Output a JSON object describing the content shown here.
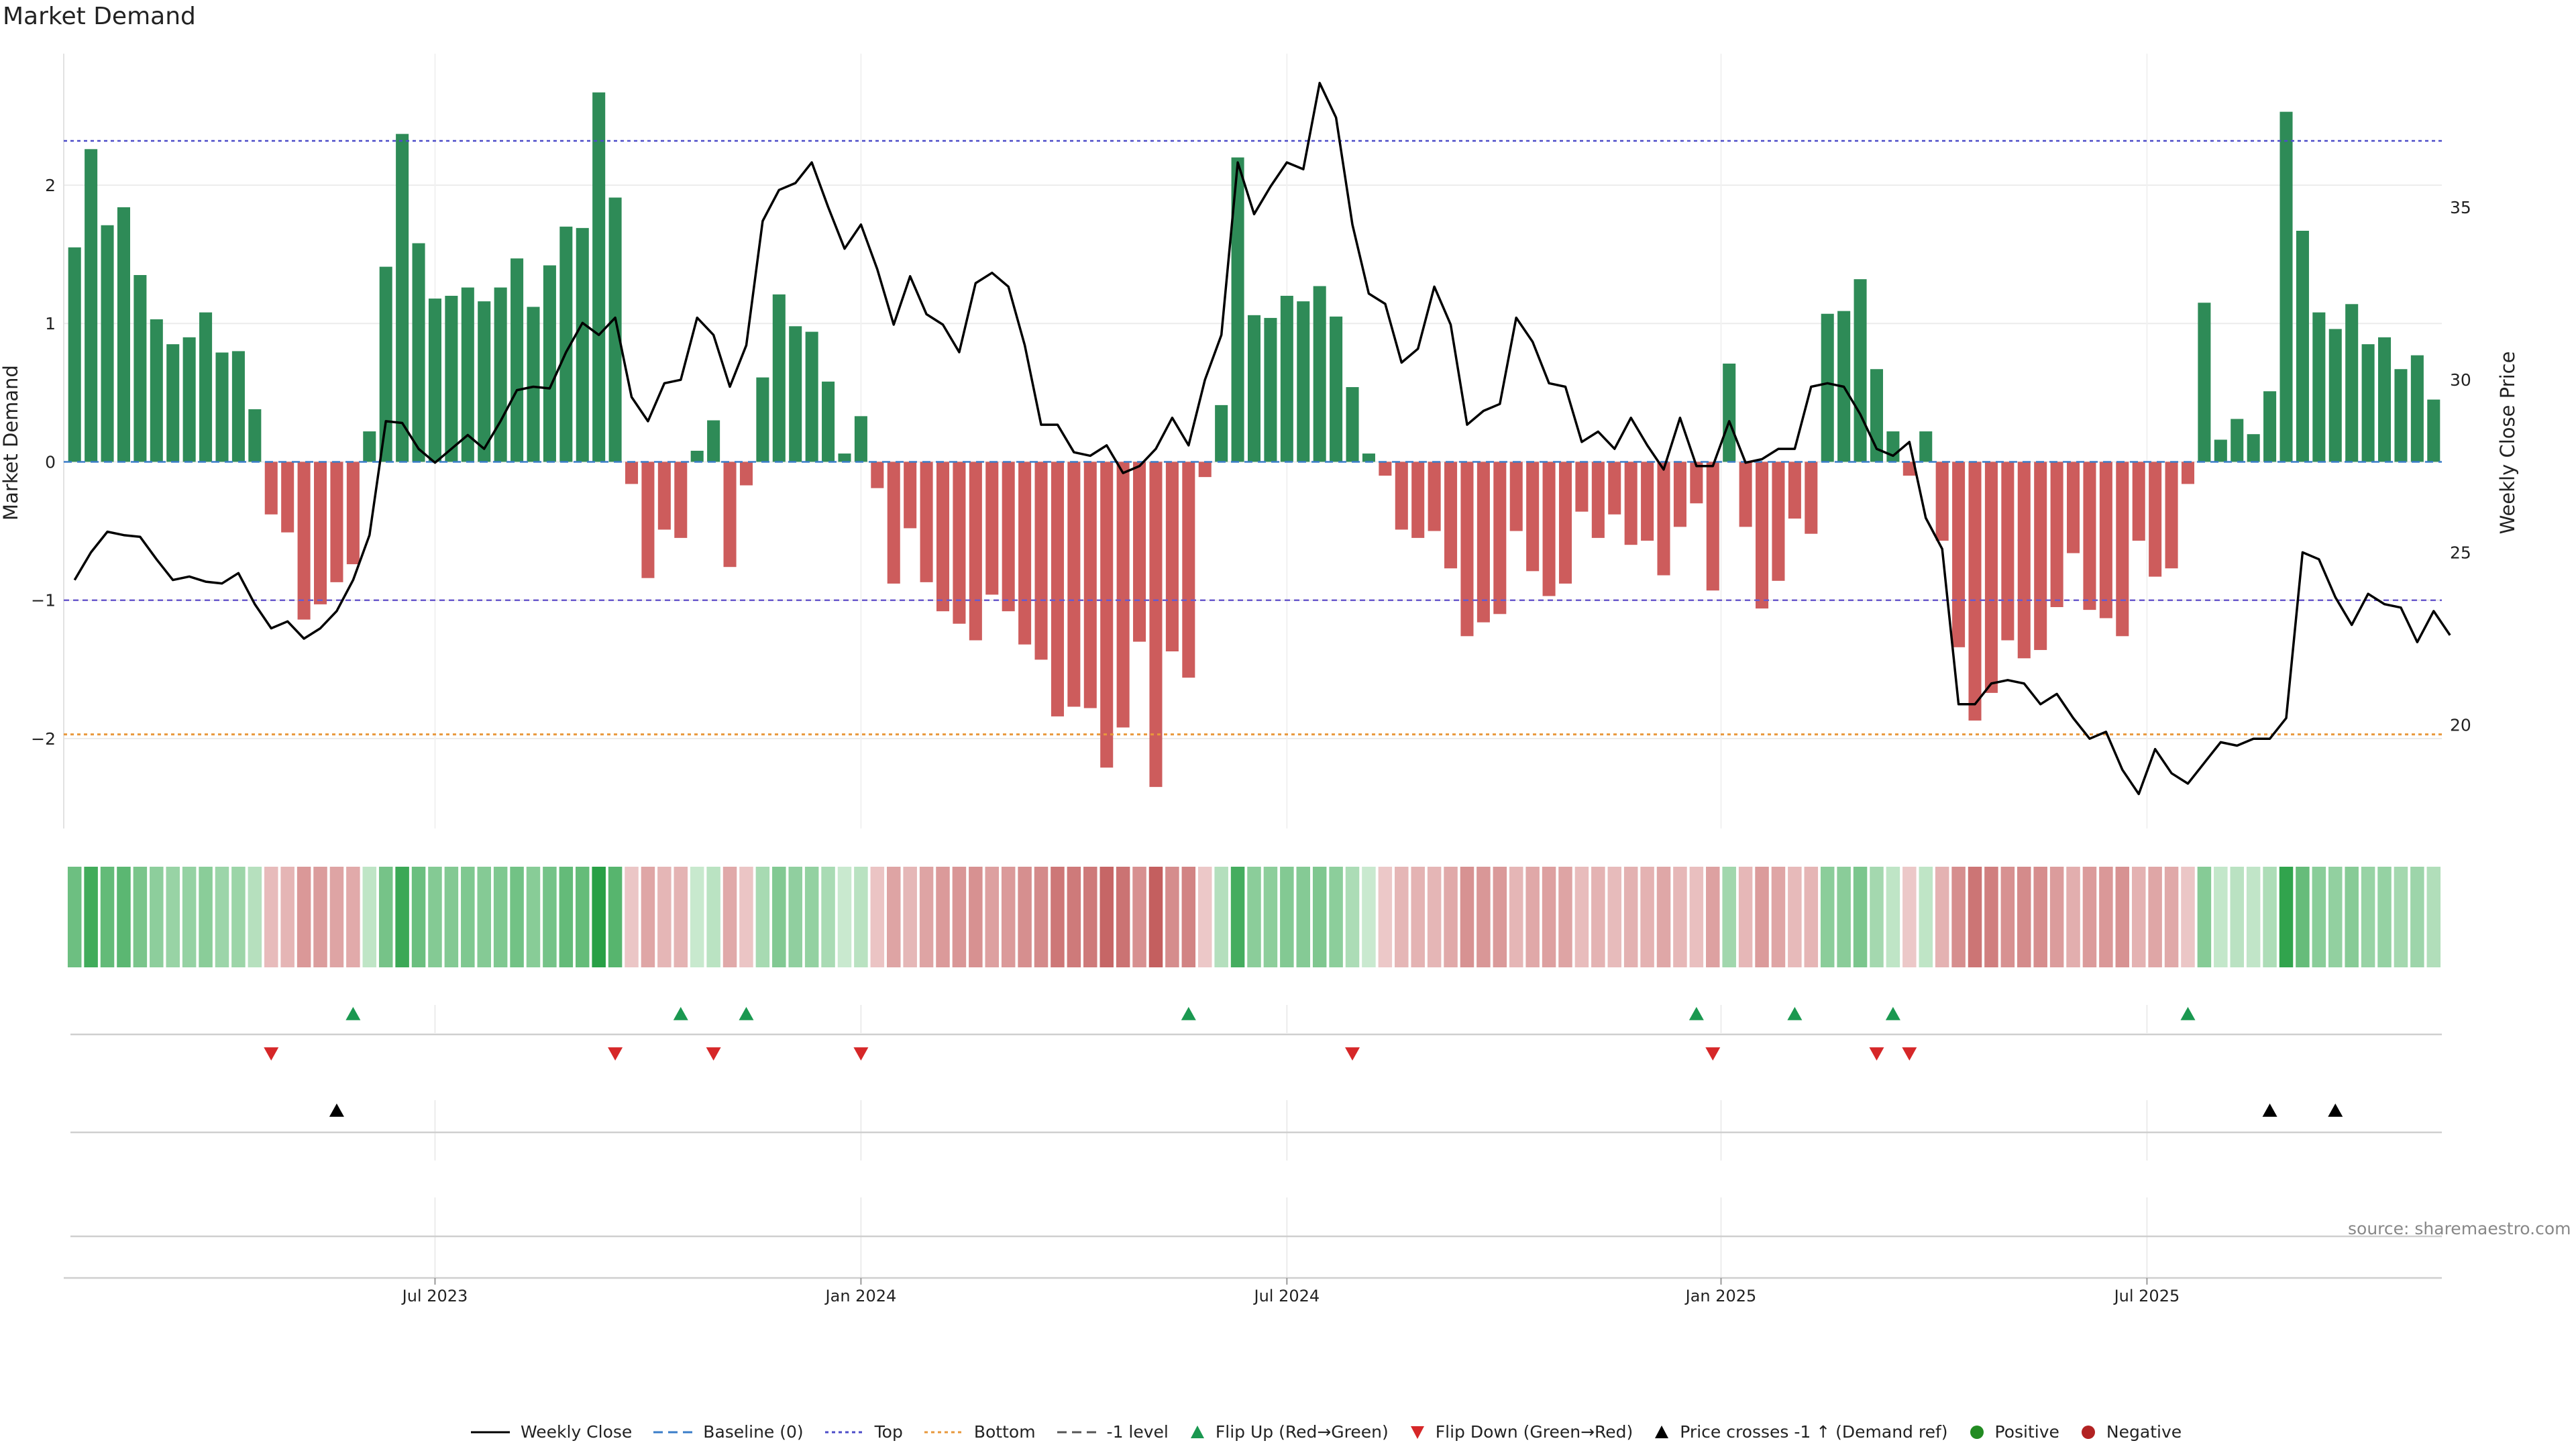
{
  "title": "Market Demand",
  "source": "source: sharemaestro.com",
  "colors": {
    "pos": "#2e8b57",
    "neg": "#cd5c5c",
    "price": "#000000",
    "top": "#4c4cc8",
    "bottom": "#e8983c",
    "minus1": "#6a5acd",
    "flip_up": "#1a9850",
    "flip_down": "#d62728",
    "cross": "#000000"
  },
  "legend": [
    {
      "label": "Weekly Close",
      "kind": "line",
      "color": "#000000"
    },
    {
      "label": "Baseline (0)",
      "kind": "dash",
      "color": "#3a7dc9"
    },
    {
      "label": "Top",
      "kind": "dot",
      "color": "#4c4cc8"
    },
    {
      "label": "Bottom",
      "kind": "dot",
      "color": "#e8983c"
    },
    {
      "label": "-1 level",
      "kind": "dash",
      "color": "#555555"
    },
    {
      "label": "Flip Up (Red→Green)",
      "kind": "tri-up",
      "color": "#1a9850"
    },
    {
      "label": "Flip Down (Green→Red)",
      "kind": "tri-down",
      "color": "#d62728"
    },
    {
      "label": "Price crosses -1 ↑ (Demand ref)",
      "kind": "tri-up",
      "color": "#000000"
    },
    {
      "label": "Positive",
      "kind": "circle",
      "color": "#228b22"
    },
    {
      "label": "Negative",
      "kind": "circle",
      "color": "#b22222"
    }
  ],
  "chart_data": {
    "type": "bar",
    "title": "Market Demand",
    "ylabel": "Market Demand",
    "y2label": "Weekly Close Price",
    "ylim": [
      -2.65,
      2.95
    ],
    "y2lim": [
      17.0,
      39.45
    ],
    "yticks": [
      -2,
      -1,
      0,
      1,
      2
    ],
    "y2ticks": [
      20,
      25,
      30,
      35
    ],
    "levels": {
      "top": 2.32,
      "bottom": -1.97,
      "minus1": -1.0,
      "baseline": 0
    },
    "x_ticks": [
      {
        "label": "Jul 2023",
        "index": 22
      },
      {
        "label": "Jan 2024",
        "index": 48
      },
      {
        "label": "Jul 2024",
        "index": 74
      },
      {
        "label": "Jan 2025",
        "index": 100.5
      },
      {
        "label": "Jul 2025",
        "index": 126.5
      }
    ],
    "demand": [
      1.55,
      2.26,
      1.71,
      1.84,
      1.35,
      1.03,
      0.85,
      0.9,
      1.08,
      0.79,
      0.8,
      0.38,
      -0.38,
      -0.51,
      -1.14,
      -1.03,
      -0.87,
      -0.74,
      0.22,
      1.41,
      2.37,
      1.58,
      1.18,
      1.2,
      1.26,
      1.16,
      1.26,
      1.47,
      1.12,
      1.42,
      1.7,
      1.69,
      2.67,
      1.91,
      -0.16,
      -0.84,
      -0.49,
      -0.55,
      0.08,
      0.3,
      -0.76,
      -0.17,
      0.61,
      1.21,
      0.98,
      0.94,
      0.58,
      0.06,
      0.33,
      -0.19,
      -0.88,
      -0.48,
      -0.87,
      -1.08,
      -1.17,
      -1.29,
      -0.96,
      -1.08,
      -1.32,
      -1.43,
      -1.84,
      -1.77,
      -1.78,
      -2.21,
      -1.92,
      -1.3,
      -2.35,
      -1.37,
      -1.56,
      -0.11,
      0.41,
      2.2,
      1.06,
      1.04,
      1.2,
      1.16,
      1.27,
      1.05,
      0.54,
      0.06,
      -0.1,
      -0.49,
      -0.55,
      -0.5,
      -0.77,
      -1.26,
      -1.16,
      -1.1,
      -0.5,
      -0.79,
      -0.97,
      -0.88,
      -0.36,
      -0.55,
      -0.38,
      -0.6,
      -0.57,
      -0.82,
      -0.47,
      -0.3,
      -0.93,
      0.71,
      -0.47,
      -1.06,
      -0.86,
      -0.41,
      -0.52,
      1.07,
      1.09,
      1.32,
      0.67,
      0.22,
      -0.1,
      0.22,
      -0.57,
      -1.34,
      -1.87,
      -1.67,
      -1.29,
      -1.42,
      -1.36,
      -1.05,
      -0.66,
      -1.07,
      -1.13,
      -1.26,
      -0.57,
      -0.83,
      -0.77,
      -0.16,
      1.15,
      0.16,
      0.31,
      0.2,
      0.51,
      2.53,
      1.67,
      1.08,
      0.96,
      1.14,
      0.85,
      0.9,
      0.67,
      0.77,
      0.45
    ],
    "close": [
      24.2,
      25.0,
      25.6,
      25.5,
      25.45,
      24.8,
      24.2,
      24.3,
      24.15,
      24.1,
      24.4,
      23.5,
      22.8,
      23.0,
      22.5,
      22.8,
      23.3,
      24.2,
      25.5,
      28.8,
      28.75,
      28.0,
      27.6,
      28.0,
      28.4,
      28.0,
      28.8,
      29.7,
      29.8,
      29.75,
      30.8,
      31.65,
      31.3,
      31.8,
      29.5,
      28.8,
      29.9,
      30.0,
      31.8,
      31.3,
      29.8,
      31.0,
      34.6,
      35.5,
      35.7,
      36.3,
      35.0,
      33.8,
      34.5,
      33.2,
      31.6,
      33.0,
      31.9,
      31.6,
      30.8,
      32.8,
      33.1,
      32.7,
      31.0,
      28.7,
      28.7,
      27.9,
      27.8,
      28.1,
      27.3,
      27.5,
      28.0,
      28.9,
      28.1,
      30.0,
      31.3,
      36.3,
      34.8,
      35.6,
      36.3,
      36.1,
      38.6,
      37.6,
      34.5,
      32.5,
      32.2,
      30.5,
      30.9,
      32.7,
      31.6,
      28.7,
      29.1,
      29.3,
      31.8,
      31.1,
      29.9,
      29.8,
      28.2,
      28.5,
      28.0,
      28.9,
      28.1,
      27.4,
      28.9,
      27.5,
      27.5,
      28.8,
      27.6,
      27.7,
      28.0,
      28.0,
      29.8,
      29.9,
      29.8,
      29.0,
      28.0,
      27.8,
      28.2,
      26.0,
      25.1,
      20.6,
      20.6,
      21.2,
      21.3,
      21.2,
      20.6,
      20.9,
      20.2,
      19.6,
      19.8,
      18.7,
      18.0,
      19.3,
      18.6,
      18.3,
      18.9,
      19.5,
      19.4,
      19.6,
      19.6,
      20.2,
      25.0,
      24.8,
      23.7,
      22.9,
      23.8,
      23.5,
      23.4,
      22.4,
      23.3,
      22.6
    ],
    "flip_up": [
      17,
      37,
      41,
      68,
      99,
      105,
      111,
      129
    ],
    "flip_down": [
      12,
      33,
      39,
      48,
      78,
      100,
      110,
      112
    ],
    "price_cross": [
      16,
      134,
      138
    ],
    "series": [
      {
        "name": "Market Demand",
        "type": "bar"
      },
      {
        "name": "Weekly Close",
        "type": "line",
        "axis": "right"
      }
    ]
  }
}
